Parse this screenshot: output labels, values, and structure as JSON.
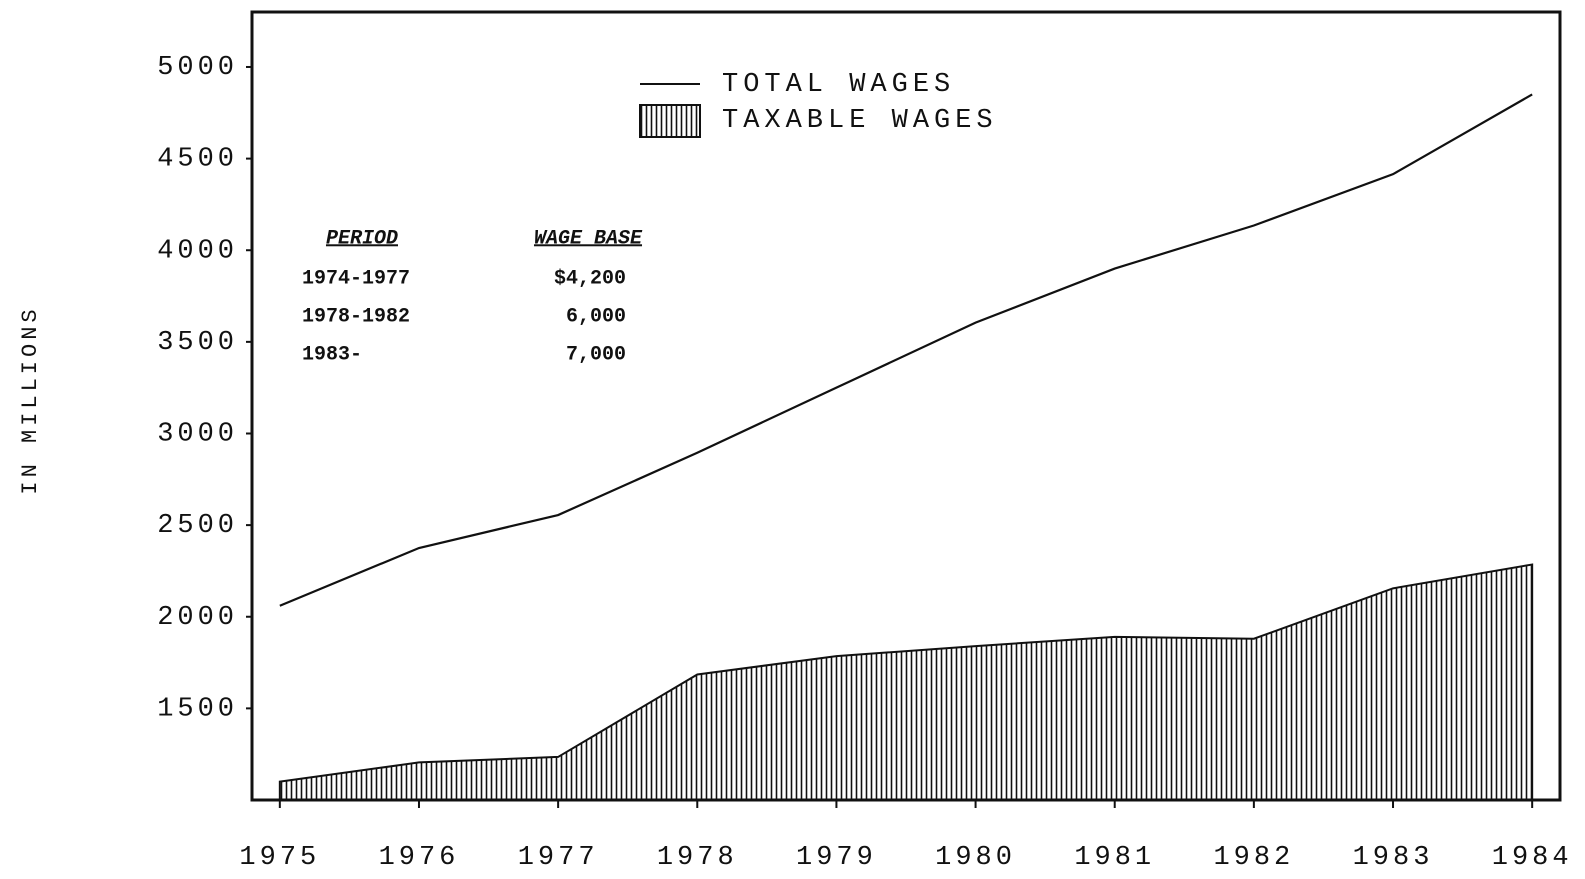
{
  "chart_data": {
    "type": "line",
    "y_label": "IN MILLIONS",
    "x": [
      1975,
      1976,
      1977,
      1978,
      1979,
      1980,
      1981,
      1982,
      1983,
      1984
    ],
    "xlim": [
      1974.8,
      1984.2
    ],
    "xticks": [
      1975,
      1976,
      1977,
      1978,
      1979,
      1980,
      1981,
      1982,
      1983,
      1984
    ],
    "ylim": [
      1000,
      5300
    ],
    "yticks": [
      1500,
      2000,
      2500,
      3000,
      3500,
      4000,
      4500,
      5000
    ],
    "series": [
      {
        "name": "TOTAL WAGES",
        "style": "line",
        "color": "#111111",
        "values": [
          2060,
          2375,
          2555,
          2895,
          3250,
          3605,
          3900,
          4135,
          4415,
          4850
        ]
      },
      {
        "name": "TAXABLE WAGES",
        "style": "hatched-area",
        "color": "#111111",
        "values": [
          1100,
          1205,
          1235,
          1685,
          1785,
          1840,
          1890,
          1880,
          2155,
          2285
        ]
      }
    ],
    "wage_base_table": {
      "headers": [
        "PERIOD",
        "WAGE BASE"
      ],
      "rows": [
        [
          "1974-1977",
          "$4,200"
        ],
        [
          "1978-1982",
          "6,000"
        ],
        [
          "1983-",
          "7,000"
        ]
      ]
    }
  }
}
